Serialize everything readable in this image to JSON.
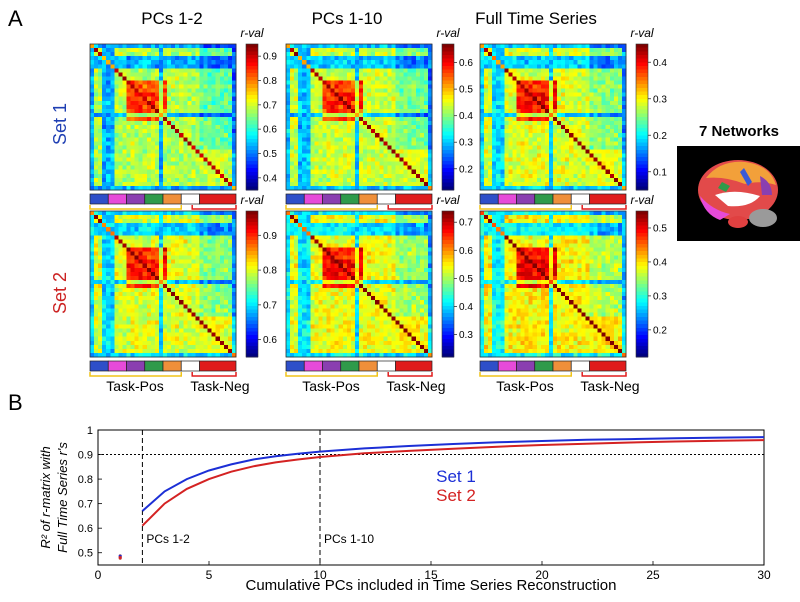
{
  "panel_a": {
    "label": "A",
    "column_titles": [
      "PCs 1-2",
      "PCs 1-10",
      "Full Time Series"
    ],
    "row_labels": [
      "Set 1",
      "Set 2"
    ],
    "row_label_colors": [
      "#1f3fb3",
      "#cc2222"
    ],
    "colorbar_title": "r-val",
    "network_label": "7 Networks",
    "group_labels": [
      "Task-Pos",
      "Task-Neg"
    ],
    "network_colors": [
      "#2e4fc9",
      "#e64ad9",
      "#8a3fb0",
      "#2f9a4a",
      "#ef8f3a",
      "#ffffff",
      "#e01c1c"
    ],
    "network_bracket_colors": [
      "#f0c419",
      "#e01c1c"
    ]
  },
  "panel_b": {
    "label": "B"
  },
  "chart_data": [
    {
      "type": "heatmap",
      "title": "PCs 1-2 / Set 1",
      "colorbar_title": "r-val",
      "colorbar_ticks": [
        0.4,
        0.5,
        0.6,
        0.7,
        0.8,
        0.9
      ],
      "range": [
        0.35,
        0.95
      ]
    },
    {
      "type": "heatmap",
      "title": "PCs 1-10 / Set 1",
      "colorbar_title": "r-val",
      "colorbar_ticks": [
        0.2,
        0.3,
        0.4,
        0.5,
        0.6
      ],
      "range": [
        0.12,
        0.67
      ]
    },
    {
      "type": "heatmap",
      "title": "Full Time Series / Set 1",
      "colorbar_title": "r-val",
      "colorbar_ticks": [
        0.1,
        0.2,
        0.3,
        0.4
      ],
      "range": [
        0.05,
        0.45
      ]
    },
    {
      "type": "heatmap",
      "title": "PCs 1-2 / Set 2",
      "colorbar_title": "r-val",
      "colorbar_ticks": [
        0.6,
        0.7,
        0.8,
        0.9
      ],
      "range": [
        0.55,
        0.97
      ]
    },
    {
      "type": "heatmap",
      "title": "PCs 1-10 / Set 2",
      "colorbar_title": "r-val",
      "colorbar_ticks": [
        0.3,
        0.4,
        0.5,
        0.6,
        0.7
      ],
      "range": [
        0.22,
        0.74
      ]
    },
    {
      "type": "heatmap",
      "title": "Full Time Series / Set 2",
      "colorbar_title": "r-val",
      "colorbar_ticks": [
        0.2,
        0.3,
        0.4,
        0.5
      ],
      "range": [
        0.12,
        0.55
      ]
    },
    {
      "type": "line",
      "title": "",
      "xlabel": "Cumulative PCs included in Time Series Reconstruction",
      "ylabel_line1": "R² of r-matrix with",
      "ylabel_line2": "Full Time Series r's",
      "xlim": [
        0,
        30
      ],
      "ylim": [
        0.45,
        1.0
      ],
      "xticks": [
        0,
        5,
        10,
        15,
        20,
        25,
        30
      ],
      "yticks": [
        0.5,
        0.6,
        0.7,
        0.8,
        0.9,
        1
      ],
      "x": [
        2,
        3,
        4,
        5,
        6,
        7,
        8,
        9,
        10,
        12,
        14,
        16,
        18,
        20,
        22,
        24,
        26,
        28,
        30
      ],
      "series": [
        {
          "name": "Set 1",
          "color": "#1c2fd6",
          "values": [
            0.67,
            0.75,
            0.8,
            0.835,
            0.86,
            0.88,
            0.893,
            0.903,
            0.912,
            0.925,
            0.935,
            0.943,
            0.95,
            0.955,
            0.96,
            0.963,
            0.966,
            0.969,
            0.971
          ]
        },
        {
          "name": "Set 2",
          "color": "#d42222",
          "values": [
            0.61,
            0.7,
            0.76,
            0.8,
            0.83,
            0.852,
            0.868,
            0.88,
            0.89,
            0.905,
            0.915,
            0.924,
            0.932,
            0.939,
            0.944,
            0.949,
            0.953,
            0.956,
            0.959
          ]
        }
      ],
      "single_point": {
        "x": 1,
        "set1": 0.485,
        "set2": 0.48
      },
      "reference_hline": 0.9,
      "reference_vlines": [
        {
          "x": 2,
          "label": "PCs 1-2"
        },
        {
          "x": 10,
          "label": "PCs 1-10"
        }
      ],
      "legend_entries": [
        "Set 1",
        "Set 2"
      ]
    }
  ]
}
